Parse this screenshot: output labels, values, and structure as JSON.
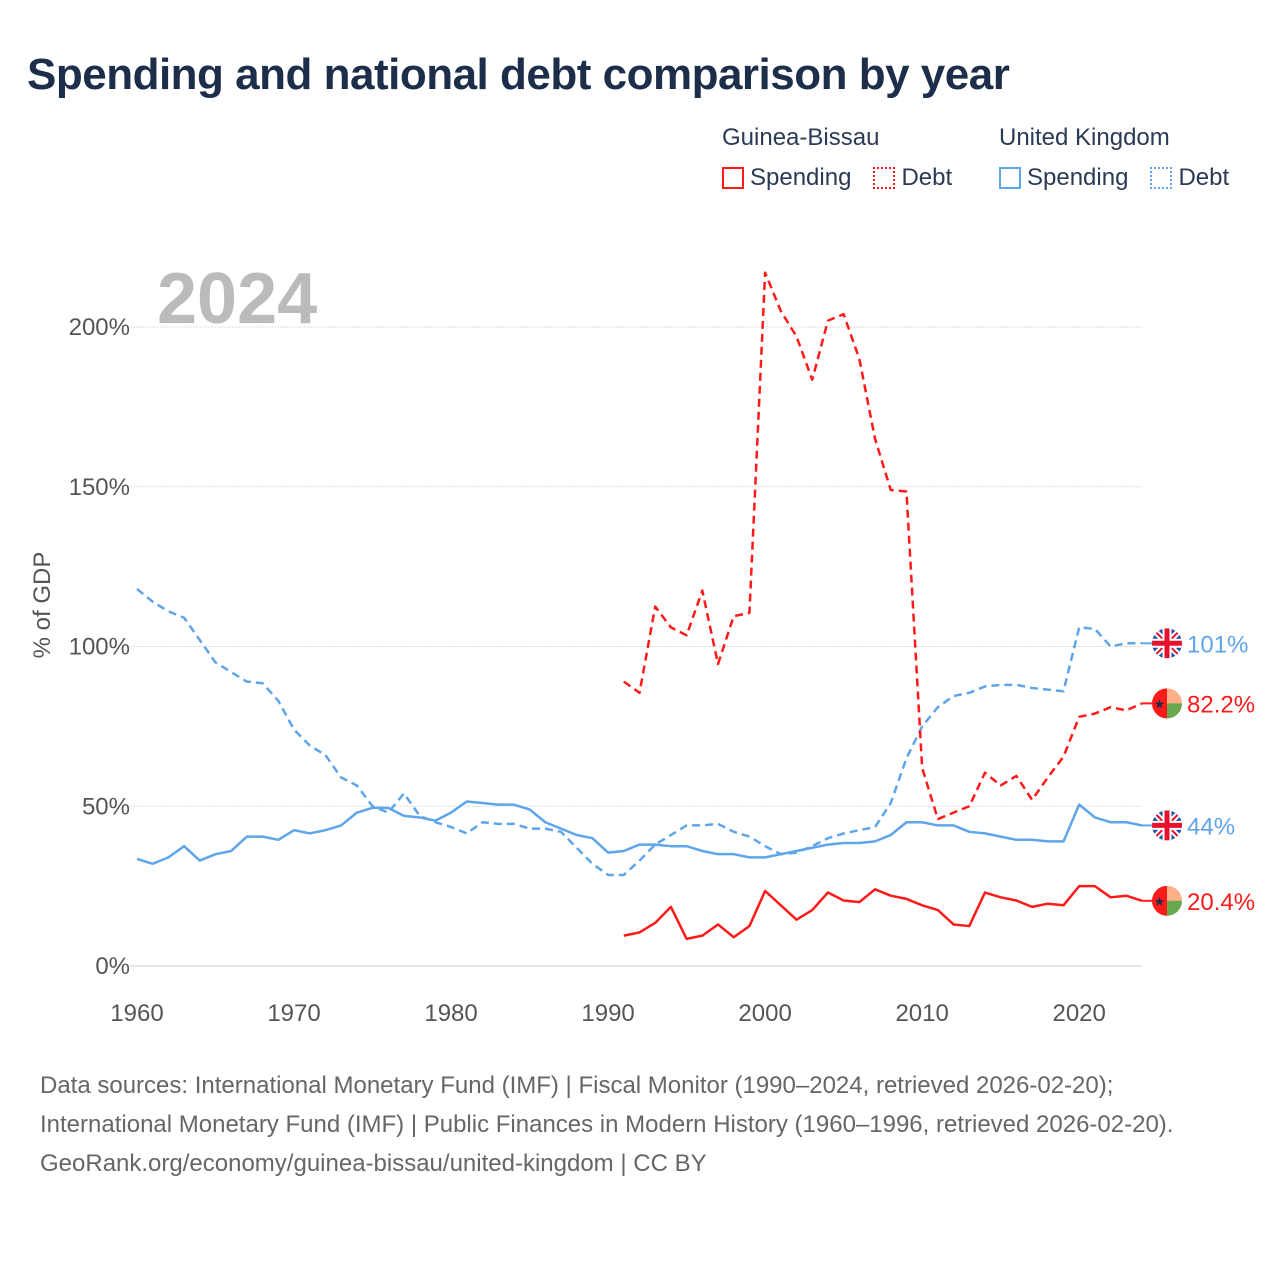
{
  "title": "Spending and national debt comparison by year",
  "legend": {
    "groups": [
      {
        "country": "Guinea-Bissau",
        "color": "#ff1a1a",
        "items": [
          {
            "label": "Spending",
            "style": "solid"
          },
          {
            "label": "Debt",
            "style": "dotted"
          }
        ]
      },
      {
        "country": "United Kingdom",
        "color": "#5ea5ea",
        "items": [
          {
            "label": "Spending",
            "style": "solid"
          },
          {
            "label": "Debt",
            "style": "dotted"
          }
        ]
      }
    ]
  },
  "chart_data": {
    "type": "line",
    "title": "Spending and national debt comparison by year",
    "year_label": "2024",
    "xlabel": "",
    "ylabel": "% of GDP",
    "xlim": [
      1960,
      2024
    ],
    "ylim": [
      0,
      200
    ],
    "x_ticks": [
      "1960",
      "1970",
      "1980",
      "1990",
      "2000",
      "2010",
      "2020"
    ],
    "y_ticks": [
      "0%",
      "50%",
      "100%",
      "150%",
      "200%"
    ],
    "grid": true,
    "series": [
      {
        "name": "United Kingdom Debt",
        "color": "#5ea5ea",
        "dashed": true,
        "start": 1960,
        "end_label": "101%",
        "flag": "uk",
        "values": [
          118,
          114,
          111,
          109,
          102,
          95,
          92,
          89,
          88.5,
          83,
          74,
          69,
          66,
          59,
          56.5,
          50,
          48,
          54,
          47,
          45,
          43.5,
          41.5,
          45,
          44.5,
          44.5,
          43,
          43,
          42,
          37,
          32,
          28.5,
          28.5,
          33,
          38,
          41,
          44,
          44,
          44.5,
          42,
          40.5,
          37.5,
          35,
          35.5,
          37.5,
          40,
          41.5,
          42.5,
          43.5,
          51,
          65,
          75,
          81,
          84.5,
          85.5,
          87.5,
          88,
          88,
          87,
          86.5,
          86,
          106,
          105.5,
          100,
          101,
          101
        ]
      },
      {
        "name": "United Kingdom Spending",
        "color": "#5ea5ea",
        "dashed": false,
        "start": 1960,
        "end_label": "44%",
        "flag": "uk",
        "values": [
          33.5,
          32,
          34,
          37.5,
          33,
          35,
          36,
          40.5,
          40.5,
          39.5,
          42.5,
          41.5,
          42.5,
          44,
          48,
          49.5,
          49.5,
          47,
          46.5,
          45.5,
          48,
          51.5,
          51,
          50.5,
          50.5,
          49,
          45,
          43,
          41,
          40,
          35.5,
          36,
          38,
          38,
          37.5,
          37.5,
          36,
          35,
          35,
          34,
          34,
          35,
          36,
          37,
          38,
          38.5,
          38.5,
          39,
          41,
          45,
          45,
          44,
          44,
          42,
          41.5,
          40.5,
          39.5,
          39.5,
          39,
          39,
          50.5,
          46.5,
          45,
          45,
          44
        ]
      },
      {
        "name": "Guinea-Bissau Debt",
        "color": "#ff1a1a",
        "dashed": true,
        "start": 1991,
        "end_label": "82.2%",
        "flag": "gb",
        "values": [
          89,
          85.5,
          112.5,
          106,
          103.5,
          117.5,
          94.5,
          109.5,
          110.5,
          217,
          205,
          197,
          183.5,
          202,
          204,
          190,
          165,
          149,
          148.5,
          62,
          46,
          48,
          50,
          60.5,
          56.5,
          59.5,
          52,
          59,
          65.5,
          78,
          79,
          81,
          80,
          82.2
        ]
      },
      {
        "name": "Guinea-Bissau Spending",
        "color": "#ff1a1a",
        "dashed": false,
        "start": 1991,
        "end_label": "20.4%",
        "flag": "gb",
        "values": [
          9.5,
          10.5,
          13.5,
          18.5,
          8.5,
          9.5,
          13,
          9,
          12.5,
          23.5,
          19,
          14.5,
          17.5,
          23,
          20.5,
          20,
          24,
          22,
          21,
          19,
          17.5,
          13,
          12.5,
          23,
          21.5,
          20.5,
          18.5,
          19.5,
          19,
          25,
          25,
          21.5,
          22,
          20.4
        ]
      }
    ]
  },
  "footer": {
    "sources": "Data sources: International Monetary Fund (IMF) | Fiscal Monitor (1990–2024, retrieved 2026-02-20); International Monetary Fund (IMF) | Public Finances in Modern History (1960–1996, retrieved 2026-02-20).",
    "credit": "GeoRank.org/economy/guinea-bissau/united-kingdom | CC BY"
  }
}
